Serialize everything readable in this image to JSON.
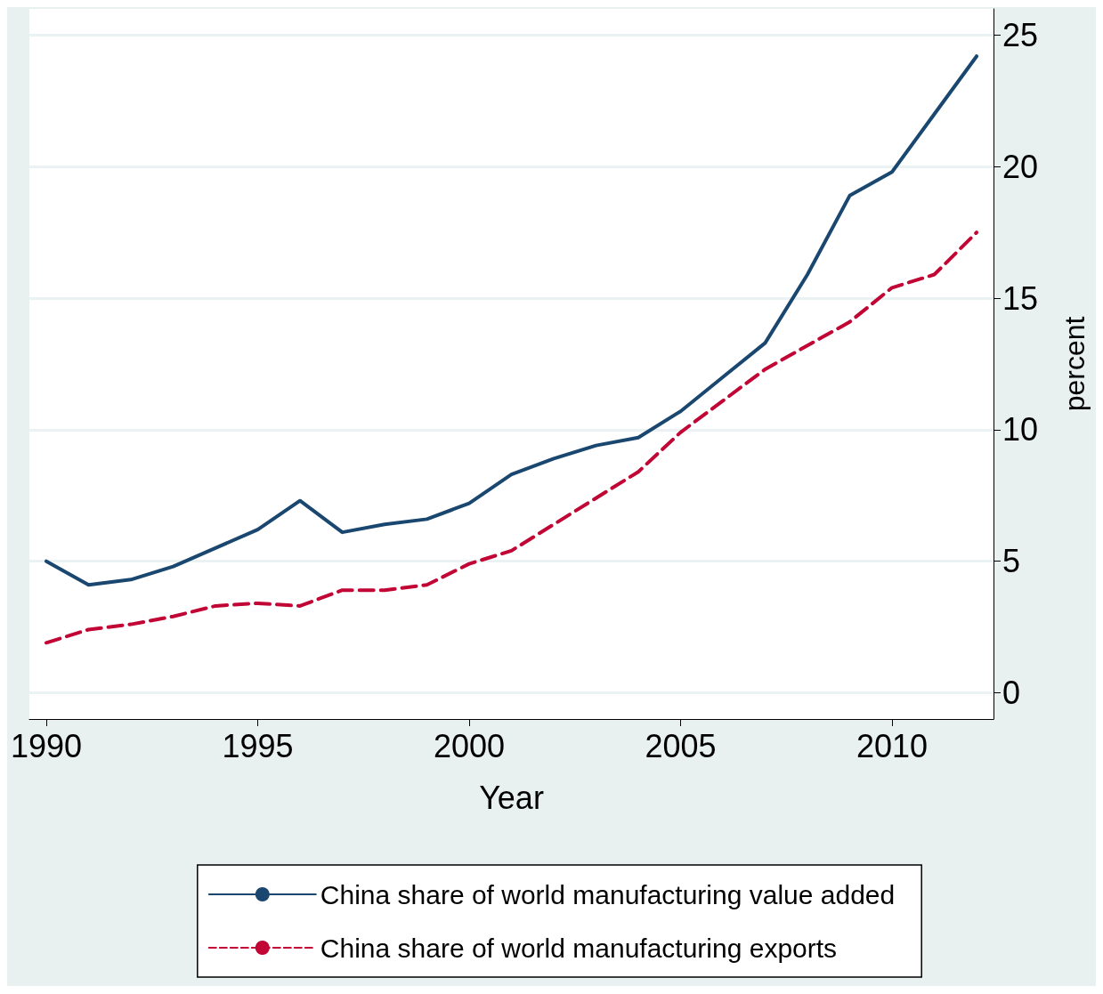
{
  "chart_data": {
    "type": "line",
    "xlabel": "Year",
    "ylabel": "percent",
    "x": [
      1990,
      1991,
      1992,
      1993,
      1994,
      1995,
      1996,
      1997,
      1998,
      1999,
      2000,
      2001,
      2002,
      2003,
      2004,
      2005,
      2006,
      2007,
      2008,
      2009,
      2010,
      2011,
      2012
    ],
    "series": [
      {
        "name": "China share of world manufacturing value added",
        "color": "#1a476f",
        "line_style": "solid",
        "values": [
          5.0,
          4.1,
          4.3,
          4.8,
          5.5,
          6.2,
          7.3,
          6.1,
          6.4,
          6.6,
          7.2,
          8.3,
          8.9,
          9.4,
          9.7,
          10.7,
          12.0,
          13.3,
          15.9,
          18.9,
          19.8,
          22.0,
          24.2
        ]
      },
      {
        "name": "China share of world manufacturing exports",
        "color": "#c10534",
        "line_style": "dashed",
        "values": [
          1.9,
          2.4,
          2.6,
          2.9,
          3.3,
          3.4,
          3.3,
          3.9,
          3.9,
          4.1,
          4.9,
          5.4,
          6.4,
          7.4,
          8.4,
          9.9,
          11.1,
          12.3,
          13.2,
          14.1,
          15.4,
          15.9,
          17.5
        ]
      }
    ],
    "xlim": [
      1989.6,
      2012.4
    ],
    "xticks": [
      1990,
      1995,
      2000,
      2005,
      2010
    ],
    "ylim": [
      -1,
      26
    ],
    "yticks": [
      0,
      5,
      10,
      15,
      20,
      25
    ],
    "grid": "y",
    "legend": "bottom",
    "marker": "none"
  }
}
